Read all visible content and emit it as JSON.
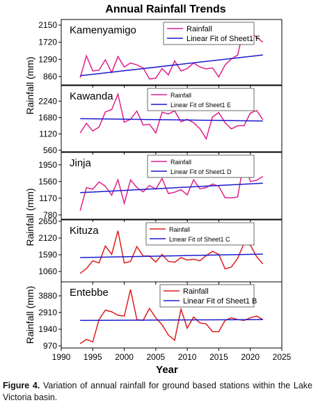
{
  "title": "Annual Rainfall Trends",
  "xlabel": "Year",
  "caption_label": "Figure 4.",
  "caption_text": "Variation of annual rainfall for ground based stations within the Lake Victoria basin.",
  "chart_data": [
    {
      "type": "line",
      "title": "Kamenyamigo",
      "ylabel": "Rainfall (mm)",
      "x": [
        1993,
        1994,
        1995,
        1996,
        1997,
        1998,
        1999,
        2000,
        2001,
        2002,
        2003,
        2004,
        2005,
        2006,
        2007,
        2008,
        2009,
        2010,
        2011,
        2012,
        2013,
        2014,
        2015,
        2016,
        2017,
        2018,
        2019,
        2020,
        2021,
        2022
      ],
      "xlim": [
        1990,
        2025
      ],
      "xticks": [
        1990,
        1995,
        2000,
        2005,
        2010,
        2015,
        2020,
        2025
      ],
      "ylim": [
        650,
        2290
      ],
      "yticks": [
        860,
        1290,
        1720,
        2150
      ],
      "series": [
        {
          "name": "Rainfall",
          "color": "#e0208a",
          "values": [
            830,
            1380,
            1000,
            1020,
            1280,
            960,
            1360,
            1100,
            1200,
            1150,
            1080,
            800,
            820,
            1060,
            900,
            1250,
            1000,
            1060,
            1200,
            1100,
            1050,
            1080,
            850,
            1150,
            1300,
            1400,
            2100,
            1950,
            1850,
            1720
          ]
        },
        {
          "name": "Linear Fit of Sheet1 F",
          "color": "#1a1acc",
          "x": [
            1993,
            2022
          ],
          "values": [
            880,
            1400
          ]
        }
      ]
    },
    {
      "type": "line",
      "title": "Kawanda",
      "x": [
        1993,
        1994,
        1995,
        1996,
        1997,
        1998,
        1999,
        2000,
        2001,
        2002,
        2003,
        2004,
        2005,
        2006,
        2007,
        2008,
        2009,
        2010,
        2011,
        2012,
        2013,
        2014,
        2015,
        2016,
        2017,
        2018,
        2019,
        2020,
        2021,
        2022
      ],
      "xlim": [
        1990,
        2025
      ],
      "xticks": [
        1990,
        1995,
        2000,
        2005,
        2010,
        2015,
        2020,
        2025
      ],
      "ylim": [
        510,
        2770
      ],
      "yticks": [
        560,
        1120,
        1680,
        2240
      ],
      "series": [
        {
          "name": "Rainfall",
          "color": "#e0208a",
          "values": [
            1150,
            1480,
            1220,
            1350,
            1870,
            1950,
            2480,
            1520,
            1620,
            1900,
            1420,
            1450,
            1150,
            1860,
            1800,
            1910,
            1530,
            1620,
            1500,
            1300,
            950,
            1700,
            1850,
            1500,
            1290,
            1400,
            1400,
            1830,
            1920,
            1600
          ]
        },
        {
          "name": "Linear Fit of Sheet1 E",
          "color": "#1a1acc",
          "x": [
            1993,
            2022
          ],
          "values": [
            1640,
            1560
          ]
        }
      ]
    },
    {
      "type": "line",
      "title": "Jinja",
      "ylabel": "Rainfall (mm)",
      "x": [
        1993,
        1994,
        1995,
        1996,
        1997,
        1998,
        1999,
        2000,
        2001,
        2002,
        2003,
        2004,
        2005,
        2006,
        2007,
        2008,
        2009,
        2010,
        2011,
        2012,
        2013,
        2014,
        2015,
        2016,
        2017,
        2018,
        2019,
        2020,
        2021,
        2022
      ],
      "xlim": [
        1990,
        2025
      ],
      "xticks": [
        1990,
        1995,
        2000,
        2005,
        2010,
        2015,
        2020,
        2025
      ],
      "ylim": [
        680,
        2240
      ],
      "yticks": [
        780,
        1170,
        1560,
        1950
      ],
      "series": [
        {
          "name": "Rainfall",
          "color": "#e0208a",
          "values": [
            880,
            1420,
            1380,
            1550,
            1450,
            1240,
            1600,
            1050,
            1600,
            1420,
            1320,
            1470,
            1380,
            1630,
            1280,
            1310,
            1370,
            1250,
            1600,
            1390,
            1420,
            1500,
            1450,
            1180,
            1180,
            1200,
            2060,
            1560,
            1590,
            1680
          ]
        },
        {
          "name": "Linear Fit of Sheet1 D",
          "color": "#1a1acc",
          "x": [
            1993,
            2022
          ],
          "values": [
            1300,
            1520
          ]
        }
      ]
    },
    {
      "type": "line",
      "title": "Kituza",
      "x": [
        1993,
        1994,
        1995,
        1996,
        1997,
        1998,
        1999,
        2000,
        2001,
        2002,
        2003,
        2004,
        2005,
        2006,
        2007,
        2008,
        2009,
        2010,
        2011,
        2012,
        2013,
        2014,
        2015,
        2016,
        2017,
        2018,
        2019,
        2020,
        2021,
        2022
      ],
      "xlim": [
        1990,
        2025
      ],
      "xticks": [
        1990,
        1995,
        2000,
        2005,
        2010,
        2015,
        2020,
        2025
      ],
      "ylim": [
        730,
        2695
      ],
      "yticks": [
        1060,
        1590,
        2120,
        2650
      ],
      "series": [
        {
          "name": "Rainfall",
          "color": "#dd1c1c",
          "values": [
            1000,
            1150,
            1400,
            1330,
            1870,
            1600,
            2350,
            1330,
            1380,
            1850,
            1550,
            1550,
            1360,
            1600,
            1380,
            1350,
            1500,
            1420,
            1450,
            1400,
            1560,
            1700,
            1600,
            1140,
            1200,
            1480,
            1950,
            1900,
            1530,
            1300
          ]
        },
        {
          "name": "Linear Fit of Sheet1 C",
          "color": "#1a1acc",
          "x": [
            1993,
            2022
          ],
          "values": [
            1500,
            1610
          ]
        }
      ]
    },
    {
      "type": "line",
      "title": "Entebbe",
      "ylabel": "Rainfall (mm)",
      "x": [
        1993,
        1994,
        1995,
        1996,
        1997,
        1998,
        1999,
        2000,
        2001,
        2002,
        2003,
        2004,
        2005,
        2006,
        2007,
        2008,
        2009,
        2010,
        2011,
        2012,
        2013,
        2014,
        2015,
        2016,
        2017,
        2018,
        2019,
        2020,
        2021,
        2022
      ],
      "xlim": [
        1990,
        2025
      ],
      "xticks": [
        1990,
        1995,
        2000,
        2005,
        2010,
        2015,
        2020,
        2025
      ],
      "ylim": [
        850,
        4690
      ],
      "yticks": [
        970,
        1940,
        2910,
        3880
      ],
      "series": [
        {
          "name": "Rainfall",
          "color": "#dd1c1c",
          "values": [
            1100,
            1350,
            1200,
            2500,
            3050,
            2950,
            2750,
            2700,
            4250,
            2500,
            2450,
            3150,
            2600,
            2200,
            1600,
            1300,
            3100,
            2000,
            2650,
            2300,
            2250,
            1800,
            1800,
            2450,
            2600,
            2500,
            2450,
            2600,
            2700,
            2500
          ]
        },
        {
          "name": "Linear Fit of Sheet1 B",
          "color": "#1a1acc",
          "x": [
            1993,
            2022
          ],
          "values": [
            2450,
            2500
          ]
        }
      ]
    }
  ]
}
